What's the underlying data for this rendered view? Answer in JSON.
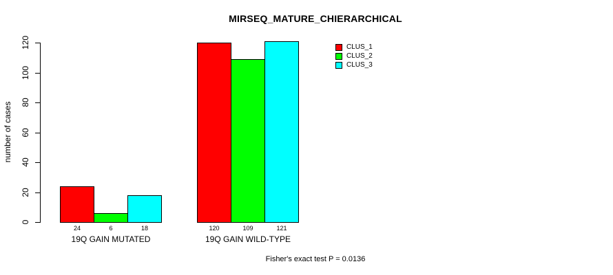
{
  "title": "MIRSEQ_MATURE_CHIERARCHICAL",
  "chart_data": {
    "type": "bar",
    "title": "MIRSEQ_MATURE_CHIERARCHICAL",
    "xlabel": "",
    "ylabel": "number of cases",
    "ylim": [
      0,
      120
    ],
    "yticks": [
      0,
      20,
      40,
      60,
      80,
      100,
      120
    ],
    "categories": [
      "19Q GAIN MUTATED",
      "19Q GAIN WILD-TYPE"
    ],
    "series": [
      {
        "name": "CLUS_1",
        "color": "#ff0000",
        "values": [
          24,
          120
        ]
      },
      {
        "name": "CLUS_2",
        "color": "#00ff00",
        "values": [
          6,
          109
        ]
      },
      {
        "name": "CLUS_3",
        "color": "#00ffff",
        "values": [
          18,
          121
        ]
      }
    ],
    "bar_value_labels": [
      [
        "24",
        "6",
        "18"
      ],
      [
        "120",
        "109",
        "121"
      ]
    ],
    "grid": false,
    "legend_position": "right-top",
    "legend_entries": [
      "CLUS_1",
      "CLUS_2",
      "CLUS_3"
    ],
    "annotation": "Fisher's exact test P = 0.0136",
    "bar_border_color": "#000000",
    "background_color": "#ffffff"
  }
}
